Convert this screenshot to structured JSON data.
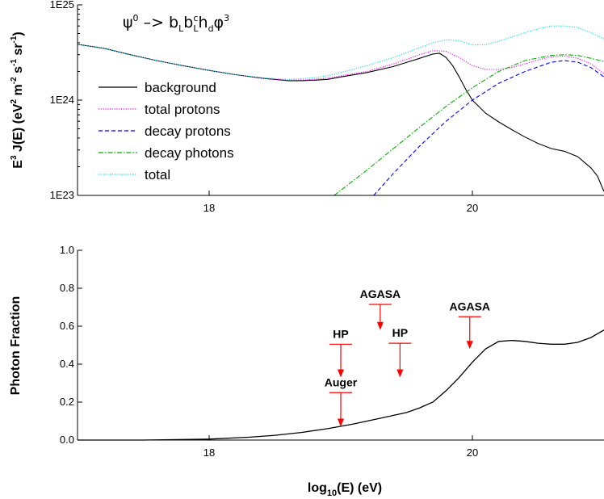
{
  "chart_data": [
    {
      "type": "line",
      "title": "ψ⁰ –> bₗbᶜₗhᵈφ³",
      "title_parts": {
        "base": "ψ",
        "base_sup": "0",
        "arrow": " –> ",
        "b1": "b",
        "b1_sub": "L",
        "b2": "b",
        "b2_sup": "c",
        "b2_sub": "L",
        "h": "h",
        "h_sub": "d",
        "phi": "φ",
        "phi_sup": "3"
      },
      "ylabel": {
        "main": "E",
        "sup3": "3",
        "rest": " J(E) (eV",
        "sup2": "2",
        "m": " m",
        "supm2": "-2",
        "s": " s",
        "sups": "-1",
        "sr": " sr",
        "supsr": "-1",
        "close": ")"
      },
      "y_scale": "log",
      "ylim": [
        1e+23,
        1e+25
      ],
      "yticks": [
        {
          "value": 1e+23,
          "label": "1E23"
        },
        {
          "value": 1e+24,
          "label": "1E24"
        },
        {
          "value": 1e+25,
          "label": "1E25"
        }
      ],
      "xlim": [
        17,
        21
      ],
      "xticks": [
        {
          "value": 18,
          "label": "18"
        },
        {
          "value": 20,
          "label": "20"
        }
      ],
      "legend_position": "left-middle",
      "series": [
        {
          "name": "background",
          "color": "#000000",
          "dash": "solid",
          "x": [
            17.0,
            17.2,
            17.4,
            17.6,
            17.8,
            18.0,
            18.2,
            18.4,
            18.6,
            18.7,
            18.8,
            18.9,
            19.0,
            19.2,
            19.4,
            19.6,
            19.7,
            19.75,
            19.8,
            19.85,
            19.9,
            19.95,
            20.0,
            20.1,
            20.2,
            20.3,
            20.4,
            20.5,
            20.6,
            20.7,
            20.8,
            20.9,
            20.95,
            21.0
          ],
          "y": [
            3.85e+24,
            3.5e+24,
            3e+24,
            2.6e+24,
            2.3e+24,
            2.05e+24,
            1.85e+24,
            1.7e+24,
            1.6e+24,
            1.6e+24,
            1.62e+24,
            1.65e+24,
            1.75e+24,
            1.95e+24,
            2.25e+24,
            2.75e+24,
            3.05e+24,
            3.1e+24,
            2.8e+24,
            2.3e+24,
            1.75e+24,
            1.3e+24,
            1e+24,
            7.3e+23,
            5.9e+23,
            4.9e+23,
            4.1e+23,
            3.5e+23,
            3.1e+23,
            2.9e+23,
            2.55e+23,
            1.95e+23,
            1.6e+23,
            1.1e+23
          ]
        },
        {
          "name": "total protons",
          "color": "#ff00ff",
          "dash": "dotted",
          "x": [
            17.0,
            17.2,
            17.4,
            17.6,
            17.8,
            18.0,
            18.2,
            18.4,
            18.6,
            18.7,
            18.8,
            18.9,
            19.0,
            19.2,
            19.4,
            19.6,
            19.7,
            19.8,
            19.9,
            20.0,
            20.1,
            20.2,
            20.3,
            20.4,
            20.5,
            20.6,
            20.7,
            20.8,
            20.9,
            21.0
          ],
          "y": [
            3.85e+24,
            3.5e+24,
            3e+24,
            2.6e+24,
            2.3e+24,
            2.05e+24,
            1.85e+24,
            1.7e+24,
            1.62e+24,
            1.63e+24,
            1.65e+24,
            1.7e+24,
            1.8e+24,
            2e+24,
            2.4e+24,
            3e+24,
            3.3e+24,
            3.25e+24,
            2.8e+24,
            2.3e+24,
            2.1e+24,
            2.1e+24,
            2.2e+24,
            2.4e+24,
            2.65e+24,
            2.85e+24,
            2.9e+24,
            2.75e+24,
            2.4e+24,
            1.9e+24
          ]
        },
        {
          "name": "decay protons",
          "color": "#0000ff",
          "dash": "dashed",
          "x": [
            19.25,
            19.4,
            19.6,
            19.8,
            20.0,
            20.2,
            20.4,
            20.6,
            20.7,
            20.8,
            20.9,
            21.0
          ],
          "y": [
            1e+23,
            1.7e+23,
            3.3e+23,
            6e+23,
            1e+24,
            1.5e+24,
            2e+24,
            2.5e+24,
            2.6e+24,
            2.5e+24,
            2.2e+24,
            1.75e+24
          ]
        },
        {
          "name": "decay photons",
          "color": "#00b000",
          "dash": "dashdot",
          "x": [
            18.95,
            19.2,
            19.4,
            19.6,
            19.8,
            20.0,
            20.2,
            20.4,
            20.6,
            20.7,
            20.8,
            20.9,
            21.0
          ],
          "y": [
            1e+23,
            1.85e+23,
            3.1e+23,
            5.2e+23,
            8.6e+23,
            1.35e+24,
            2e+24,
            2.6e+24,
            2.95e+24,
            3e+24,
            2.95e+24,
            2.75e+24,
            2.55e+24
          ]
        },
        {
          "name": "total",
          "color": "#00e5e5",
          "dash": "dotted",
          "x": [
            17.0,
            17.2,
            17.4,
            17.6,
            17.8,
            18.0,
            18.2,
            18.4,
            18.6,
            18.7,
            18.8,
            18.9,
            19.0,
            19.2,
            19.4,
            19.6,
            19.7,
            19.8,
            19.9,
            20.0,
            20.1,
            20.2,
            20.3,
            20.4,
            20.5,
            20.6,
            20.7,
            20.8,
            20.9,
            21.0
          ],
          "y": [
            3.85e+24,
            3.5e+24,
            3e+24,
            2.6e+24,
            2.3e+24,
            2.05e+24,
            1.85e+24,
            1.72e+24,
            1.65e+24,
            1.68e+24,
            1.72e+24,
            1.8e+24,
            1.95e+24,
            2.3e+24,
            2.8e+24,
            3.55e+24,
            4e+24,
            4.3e+24,
            4.2e+24,
            3.8e+24,
            3.8e+24,
            4.15e+24,
            4.6e+24,
            5.1e+24,
            5.6e+24,
            6e+24,
            6e+24,
            5.8e+24,
            5.1e+24,
            4.4e+24
          ]
        }
      ]
    },
    {
      "type": "line",
      "ylabel": "Photon Fraction",
      "xlabel": {
        "main": "log",
        "sub": "10",
        "rest": "(E) (eV)"
      },
      "xlim": [
        17,
        21
      ],
      "ylim": [
        0,
        1.0
      ],
      "xticks": [
        {
          "value": 18,
          "label": "18"
        },
        {
          "value": 20,
          "label": "20"
        }
      ],
      "yticks": [
        {
          "value": 0.0,
          "label": "0.0"
        },
        {
          "value": 0.2,
          "label": "0.2"
        },
        {
          "value": 0.4,
          "label": "0.4"
        },
        {
          "value": 0.6,
          "label": "0.6"
        },
        {
          "value": 0.8,
          "label": "0.8"
        },
        {
          "value": 1.0,
          "label": "1.0"
        }
      ],
      "series": [
        {
          "color": "#000000",
          "dash": "solid",
          "x": [
            17.0,
            17.5,
            18.0,
            18.3,
            18.5,
            18.7,
            18.9,
            19.1,
            19.3,
            19.5,
            19.6,
            19.7,
            19.8,
            19.9,
            20.0,
            20.1,
            20.2,
            20.3,
            20.4,
            20.5,
            20.6,
            20.7,
            20.8,
            20.9,
            21.0
          ],
          "y": [
            0.0,
            0.0,
            0.005,
            0.015,
            0.025,
            0.04,
            0.06,
            0.085,
            0.115,
            0.145,
            0.17,
            0.2,
            0.26,
            0.33,
            0.41,
            0.48,
            0.52,
            0.525,
            0.52,
            0.51,
            0.505,
            0.505,
            0.515,
            0.54,
            0.58
          ]
        }
      ],
      "annotations": [
        {
          "label": "HP",
          "x": 19.0,
          "bar_y": 0.505,
          "arrow_tip_y": 0.33,
          "color": "#ff0000"
        },
        {
          "label": "Auger",
          "x": 19.0,
          "bar_y": 0.25,
          "arrow_tip_y": 0.07,
          "color": "#ff0000"
        },
        {
          "label": "AGASA",
          "x": 19.3,
          "bar_y": 0.715,
          "arrow_tip_y": 0.58,
          "color": "#ff0000"
        },
        {
          "label": "HP",
          "x": 19.45,
          "bar_y": 0.51,
          "arrow_tip_y": 0.33,
          "color": "#ff0000"
        },
        {
          "label": "AGASA",
          "x": 19.98,
          "bar_y": 0.65,
          "arrow_tip_y": 0.48,
          "color": "#ff0000"
        }
      ]
    }
  ]
}
